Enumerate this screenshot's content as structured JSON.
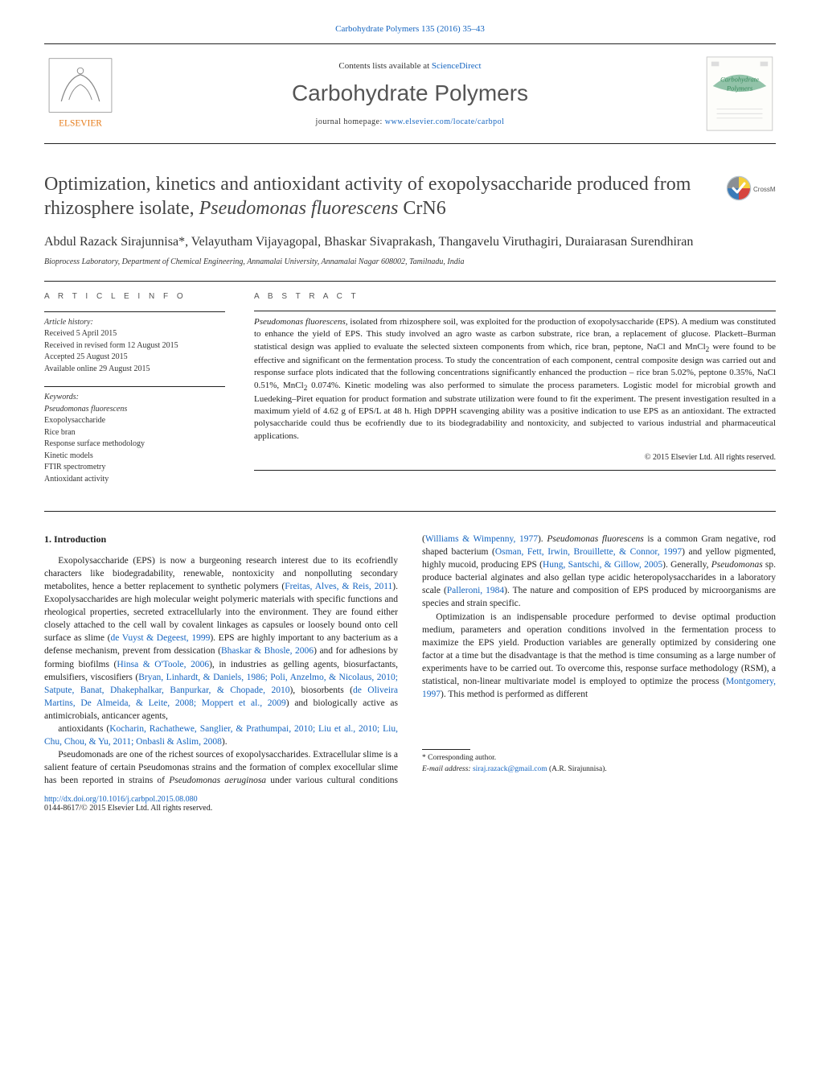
{
  "top_cite": "Carbohydrate Polymers 135 (2016) 35–43",
  "masthead": {
    "contents_line_prefix": "Contents lists available at ",
    "contents_link": "ScienceDirect",
    "journal": "Carbohydrate Polymers",
    "homepage_prefix": "journal homepage: ",
    "homepage_link": "www.elsevier.com/locate/carbpol",
    "publisher_logo_text": "ELSEVIER",
    "cover_logo_text": "Carbohydrate Polymers"
  },
  "crossmark_label": "CrossMark",
  "title_parts": {
    "pre": "Optimization, kinetics and antioxidant activity of exopolysaccharide produced from rhizosphere isolate, ",
    "ital": "Pseudomonas fluorescens",
    "post": " CrN6"
  },
  "authors": "Abdul Razack Sirajunnisa*, Velayutham Vijayagopal, Bhaskar Sivaprakash, Thangavelu Viruthagiri, Duraiarasan Surendhiran",
  "affiliation": "Bioprocess Laboratory, Department of Chemical Engineering, Annamalai University, Annamalai Nagar 608002, Tamilnadu, India",
  "info": {
    "heading": "A R T I C L E   I N F O",
    "history_label": "Article history:",
    "history": [
      "Received 5 April 2015",
      "Received in revised form 12 August 2015",
      "Accepted 25 August 2015",
      "Available online 29 August 2015"
    ],
    "keywords_label": "Keywords:",
    "keywords": [
      "Pseudomonas fluorescens",
      "Exopolysaccharide",
      "Rice bran",
      "Response surface methodology",
      "Kinetic models",
      "FTIR spectrometry",
      "Antioxidant activity"
    ]
  },
  "abstract": {
    "heading": "A B S T R A C T",
    "text_segments": [
      {
        "t": "Pseudomonas fluorescens",
        "i": true
      },
      {
        "t": ", isolated from rhizosphere soil, was exploited for the production of exopolysaccharide (EPS). A medium was constituted to enhance the yield of EPS. This study involved an agro waste as carbon substrate, rice bran, a replacement of glucose. Plackett–Burman statistical design was applied to evaluate the selected sixteen components from which, rice bran, peptone, NaCl and MnCl",
        "i": false
      },
      {
        "t": "2",
        "sub": true
      },
      {
        "t": " were found to be effective and significant on the fermentation process. To study the concentration of each component, central composite design was carried out and response surface plots indicated that the following concentrations significantly enhanced the production – rice bran 5.02%, peptone 0.35%, NaCl 0.51%, MnCl",
        "i": false
      },
      {
        "t": "2",
        "sub": true
      },
      {
        "t": " 0.074%. Kinetic modeling was also performed to simulate the process parameters. Logistic model for microbial growth and Luedeking–Piret equation for product formation and substrate utilization were found to fit the experiment. The present investigation resulted in a maximum yield of 4.62 g of EPS/L at 48 h. High DPPH scavenging ability was a positive indication to use EPS as an antioxidant. The extracted polysaccharide could thus be ecofriendly due to its biodegradability and nontoxicity, and subjected to various industrial and pharmaceutical applications.",
        "i": false
      }
    ],
    "copyright": "© 2015 Elsevier Ltd. All rights reserved."
  },
  "body": {
    "heading": "1.  Introduction",
    "paragraphs": [
      [
        {
          "t": "Exopolysaccharide (EPS) is now a burgeoning research interest due to its ecofriendly characters like biodegradability, renewable, nontoxicity and nonpolluting secondary metabolites, hence a better replacement to synthetic polymers ("
        },
        {
          "t": "Freitas, Alves, & Reis, 2011",
          "link": true
        },
        {
          "t": "). Exopolysaccharides are high molecular weight polymeric materials with specific functions and rheological properties, secreted extracellularly into the environment. They are found either closely attached to the cell wall by covalent linkages as capsules or loosely bound onto cell surface as slime ("
        },
        {
          "t": "de Vuyst & Degeest, 1999",
          "link": true
        },
        {
          "t": "). EPS are highly important to any bacterium as a defense mechanism, prevent from dessication ("
        },
        {
          "t": "Bhaskar & Bhosle, 2006",
          "link": true
        },
        {
          "t": ") and for adhesions by forming biofilms ("
        },
        {
          "t": "Hinsa & O'Toole, 2006",
          "link": true
        },
        {
          "t": "), in industries as gelling agents, biosurfactants, emulsifiers, viscosifiers ("
        },
        {
          "t": "Bryan, Linhardt, & Daniels, 1986; Poli, Anzelmo, & Nicolaus, 2010; Satpute, Banat, Dhakephalkar, Banpurkar, & Chopade, 2010",
          "link": true
        },
        {
          "t": "), biosorbents ("
        },
        {
          "t": "de Oliveira Martins, De Almeida, & Leite, 2008; Moppert et al., 2009",
          "link": true
        },
        {
          "t": ") and biologically active as antimicrobials, anticancer agents, "
        }
      ],
      [
        {
          "t": "antioxidants ("
        },
        {
          "t": "Kocharin, Rachathewe, Sanglier, & Prathumpai, 2010; Liu et al., 2010; Liu, Chu, Chou, & Yu, 2011; Onbasli & Aslim, 2008",
          "link": true
        },
        {
          "t": ")."
        }
      ],
      [
        {
          "t": "Pseudomonads are one of the richest sources of exopolysaccharides. Extracellular slime is a salient feature of certain Pseudomonas strains and the formation of complex exocellular slime has been reported in strains of "
        },
        {
          "t": "Pseudomonas aeruginosa",
          "i": true
        },
        {
          "t": " under various cultural conditions ("
        },
        {
          "t": "Williams & Wimpenny, 1977",
          "link": true
        },
        {
          "t": "). "
        },
        {
          "t": "Pseudomonas fluorescens",
          "i": true
        },
        {
          "t": " is a common Gram negative, rod shaped bacterium ("
        },
        {
          "t": "Osman, Fett, Irwin, Brouillette, & Connor, 1997",
          "link": true
        },
        {
          "t": ") and yellow pigmented, highly mucoid, producing EPS ("
        },
        {
          "t": "Hung, Santschi, & Gillow, 2005",
          "link": true
        },
        {
          "t": "). Generally, "
        },
        {
          "t": "Pseudomonas",
          "i": true
        },
        {
          "t": " sp. produce bacterial alginates and also gellan type acidic heteropolysaccharides in a laboratory scale ("
        },
        {
          "t": "Palleroni, 1984",
          "link": true
        },
        {
          "t": "). The nature and composition of EPS produced by microorganisms are species and strain specific."
        }
      ],
      [
        {
          "t": "Optimization is an indispensable procedure performed to devise optimal production medium, parameters and operation conditions involved in the fermentation process to maximize the EPS yield. Production variables are generally optimized by considering one factor at a time but the disadvantage is that the method is time consuming as a large number of experiments have to be carried out. To overcome this, response surface methodology (RSM), a statistical, non-linear multivariate model is employed to optimize the process ("
        },
        {
          "t": "Montgomery, 1997",
          "link": true
        },
        {
          "t": "). This method is performed as different"
        }
      ]
    ]
  },
  "footer": {
    "corresponding": "* Corresponding author.",
    "email_label": "E-mail address: ",
    "email": "siraj.razack@gmail.com",
    "email_tail": " (A.R. Sirajunnisa).",
    "doi_link": "http://dx.doi.org/10.1016/j.carbpol.2015.08.080",
    "issn_line": "0144-8617/© 2015 Elsevier Ltd. All rights reserved."
  },
  "colors": {
    "link": "#1565c0",
    "text": "#222222",
    "heading_gray": "#555555",
    "elsevier_orange": "#e67a17",
    "cover_teal": "#7fb89a",
    "cover_text": "#3a8a5d",
    "crossmark_outer": "#b8c4cc",
    "crossmark_yellow": "#f5cf3a",
    "crossmark_red": "#d6453e",
    "crossmark_blue": "#3a7ab8",
    "crossmark_gray": "#8a8f94"
  }
}
